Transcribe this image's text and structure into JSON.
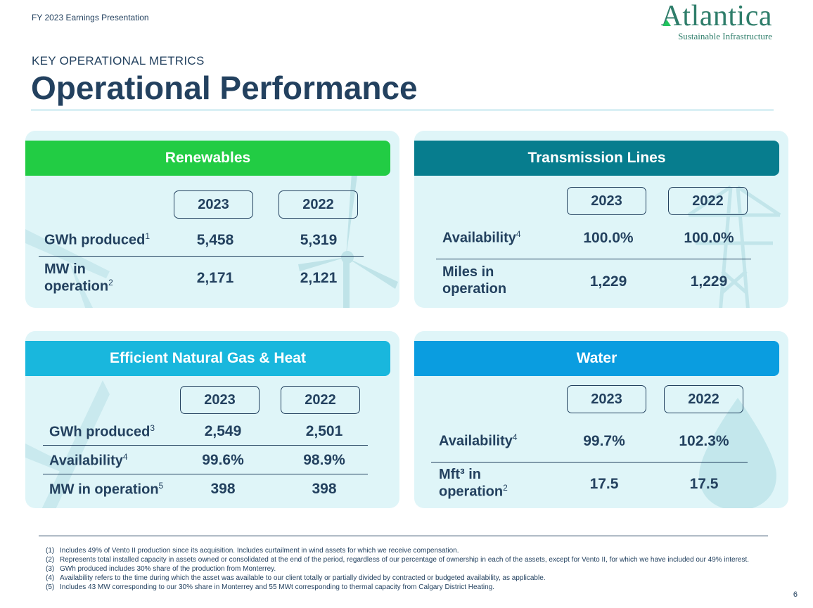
{
  "header": {
    "label": "FY 2023 Earnings Presentation"
  },
  "logo": {
    "name": "Atlantica",
    "tagline": "Sustainable Infrastructure"
  },
  "section": {
    "subtitle": "KEY OPERATIONAL METRICS",
    "title": "Operational Performance"
  },
  "colors": {
    "renewables": "#22cc44",
    "transmission": "#077d8e",
    "gas": "#19b7dd",
    "water": "#0a9de0",
    "text": "#23415f",
    "panel_bg": "#dff5f8"
  },
  "panels": {
    "renewables": {
      "title": "Renewables",
      "years": [
        "2023",
        "2022"
      ],
      "rows": [
        {
          "label": "GWh produced",
          "sup": "1",
          "v2023": "5,458",
          "v2022": "5,319"
        },
        {
          "label_line1": "MW in",
          "label_line2": "operation",
          "sup": "2",
          "v2023": "2,171",
          "v2022": "2,121"
        }
      ]
    },
    "transmission": {
      "title": "Transmission Lines",
      "years": [
        "2023",
        "2022"
      ],
      "rows": [
        {
          "label": "Availability",
          "sup": "4",
          "v2023": "100.0%",
          "v2022": "100.0%"
        },
        {
          "label_line1": "Miles in",
          "label_line2": "operation",
          "v2023": "1,229",
          "v2022": "1,229"
        }
      ]
    },
    "gas": {
      "title": "Efficient Natural Gas & Heat",
      "years": [
        "2023",
        "2022"
      ],
      "rows": [
        {
          "label": "GWh produced",
          "sup": "3",
          "v2023": "2,549",
          "v2022": "2,501"
        },
        {
          "label": "Availability",
          "sup": "4",
          "v2023": "99.6%",
          "v2022": "98.9%"
        },
        {
          "label": "MW in operation",
          "sup": "5",
          "v2023": "398",
          "v2022": "398"
        }
      ]
    },
    "water": {
      "title": "Water",
      "years": [
        "2023",
        "2022"
      ],
      "rows": [
        {
          "label": "Availability",
          "sup": "4",
          "v2023": "99.7%",
          "v2022": "102.3%"
        },
        {
          "label_line1": "Mft³ in",
          "label_line2": "operation",
          "sup": "2",
          "v2023": "17.5",
          "v2022": "17.5"
        }
      ]
    }
  },
  "footnotes": [
    {
      "num": "(1)",
      "text": "Includes 49% of Vento II production since its acquisition. Includes curtailment in wind assets for which we receive compensation."
    },
    {
      "num": "(2)",
      "text": "Represents total installed capacity in assets owned or consolidated at the end of the period, regardless of our percentage of ownership in each of the assets, except for Vento II, for which we have included our 49% interest."
    },
    {
      "num": "(3)",
      "text": "GWh produced includes 30% share of the production from Monterrey."
    },
    {
      "num": "(4)",
      "text": "Availability refers to the time during which the asset was available to our client totally or partially divided by contracted or budgeted availability, as applicable."
    },
    {
      "num": "(5)",
      "text": "Includes 43 MW corresponding to our 30% share in Monterrey and 55 MWt corresponding to thermal capacity from Calgary District Heating."
    }
  ],
  "page_number": "6"
}
